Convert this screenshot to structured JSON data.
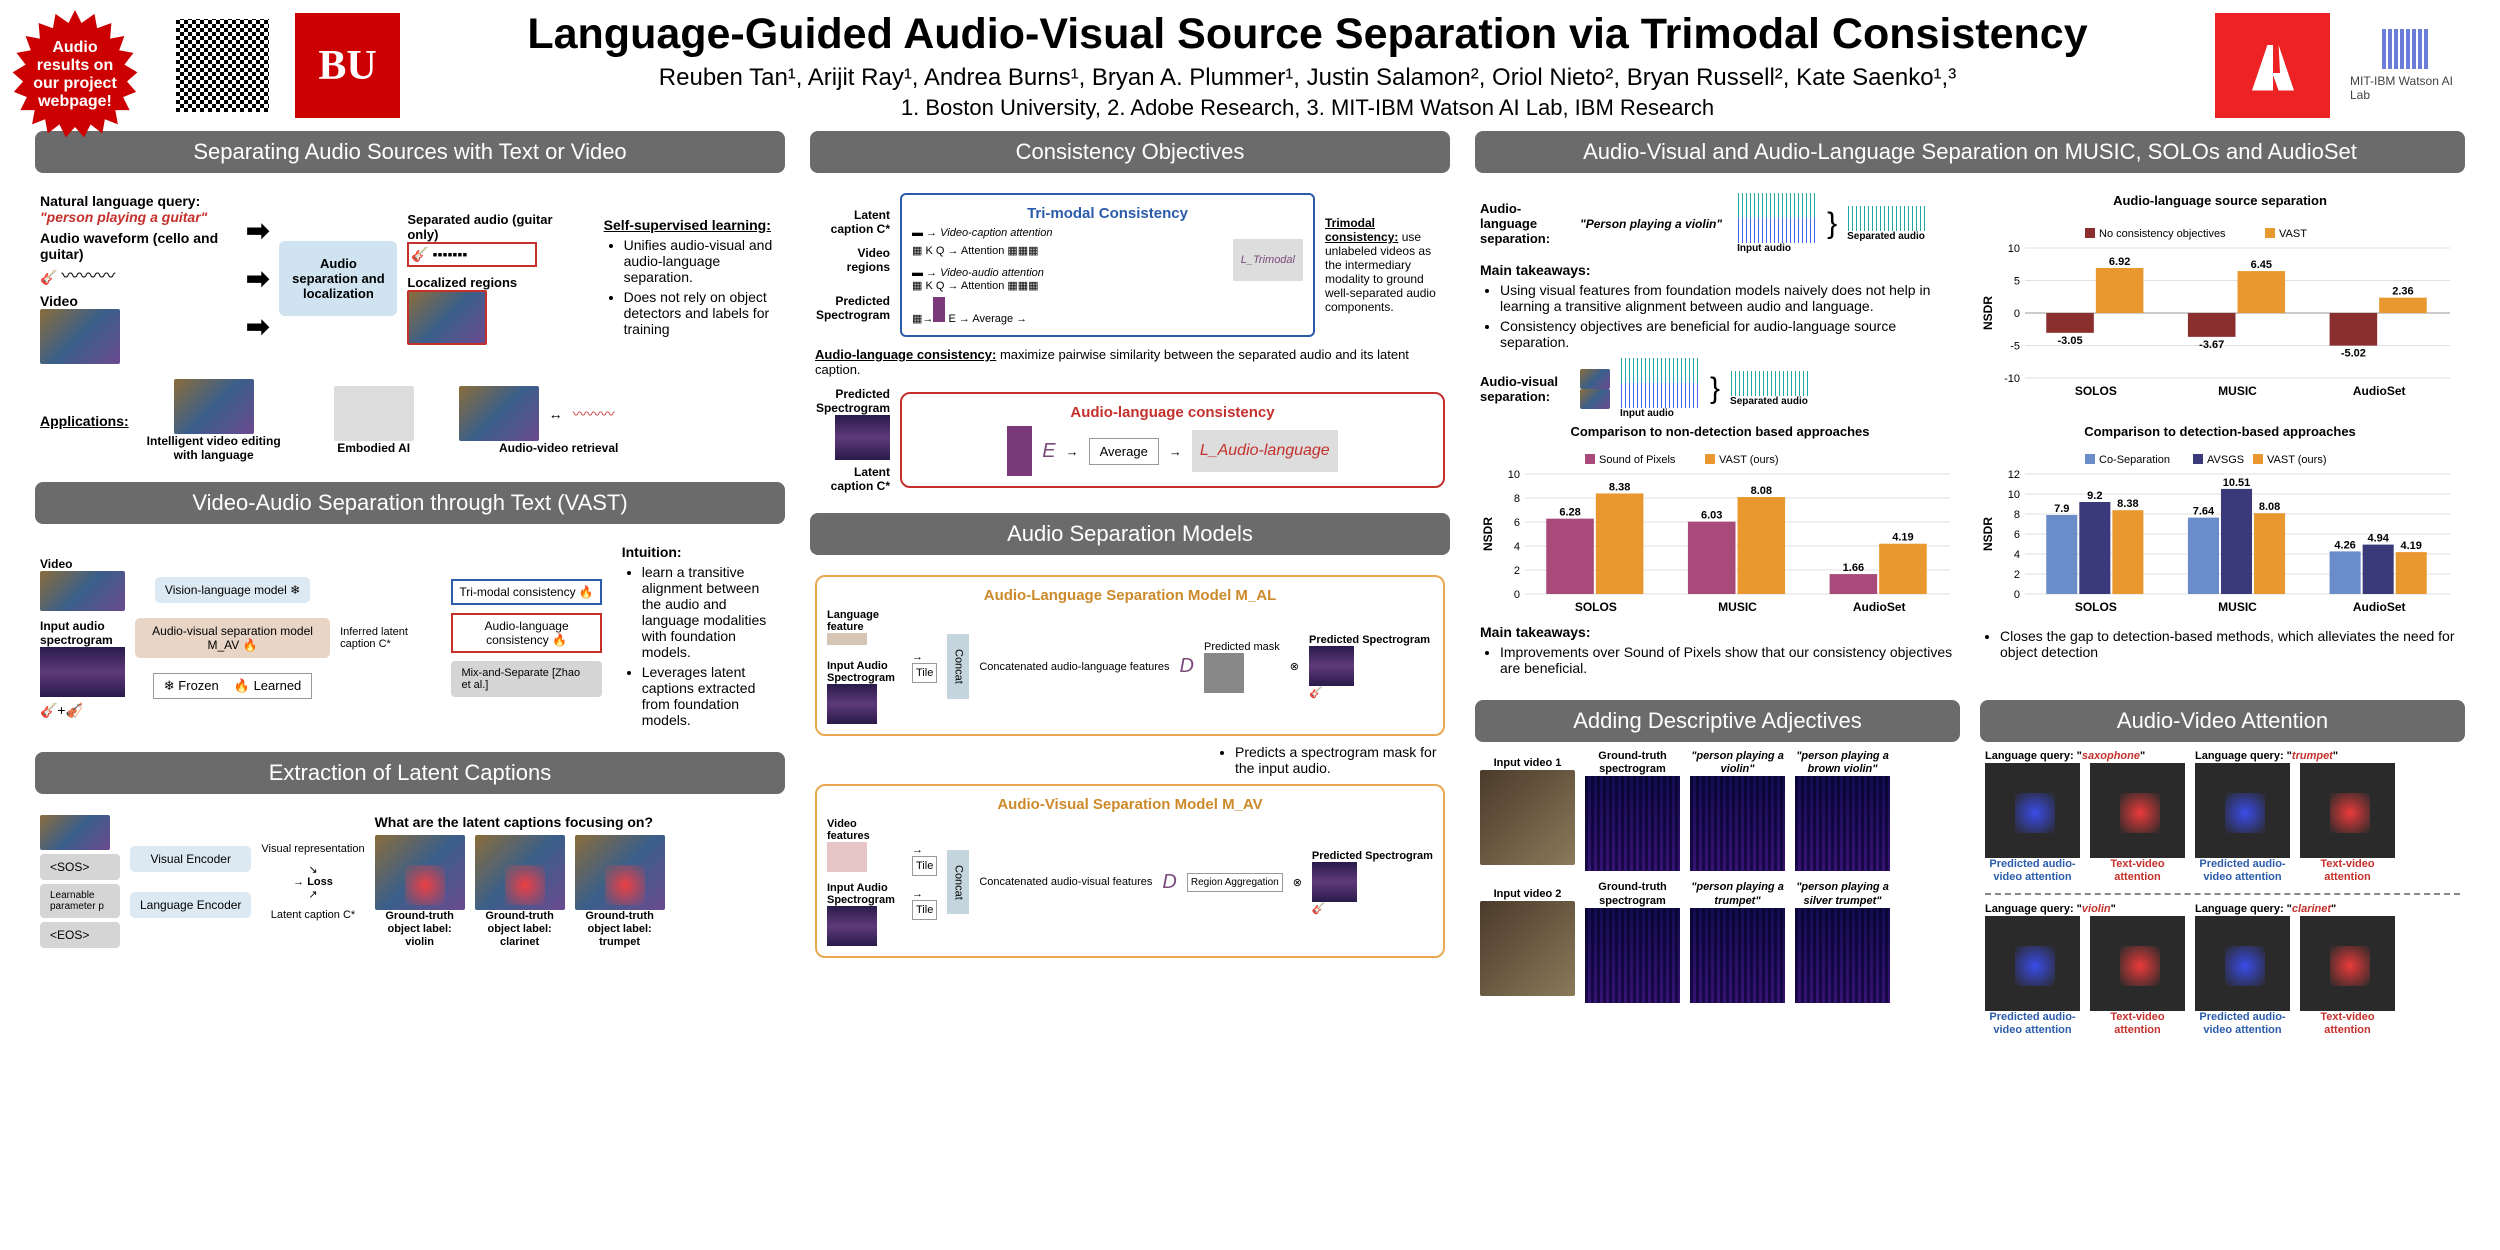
{
  "header": {
    "burst": "Audio results on our project webpage!",
    "bu": "BU",
    "title": "Language-Guided Audio-Visual Source Separation via Trimodal Consistency",
    "authors": "Reuben Tan¹, Arijit Ray¹, Andrea Burns¹, Bryan A. Plummer¹, Justin Salamon², Oriol Nieto², Bryan Russell², Kate Saenko¹,³",
    "affils": "1. Boston University, 2. Adobe Research, 3. MIT-IBM Watson AI Lab, IBM Research",
    "adobe": "A",
    "mit": "MIT-IBM Watson AI Lab"
  },
  "col1": {
    "s1": {
      "title": "Separating Audio Sources with Text or Video",
      "query_label": "Natural language query:",
      "query": "\"person playing a guitar\"",
      "waveform": "Audio waveform (cello and guitar)",
      "video": "Video",
      "box": "Audio separation and localization",
      "sep_audio": "Separated audio (guitar only)",
      "localized": "Localized regions",
      "ssl_title": "Self-supervised learning:",
      "ssl_1": "Unifies audio-visual and audio-language separation.",
      "ssl_2": "Does not rely on object detectors and labels for training",
      "apps_label": "Applications:",
      "app1": "Intelligent video editing with language",
      "app2": "Embodied AI",
      "app3": "Audio-video retrieval"
    },
    "s2": {
      "title": "Video-Audio Separation through Text (VAST)",
      "video": "Video",
      "input_spec": "Input audio spectrogram",
      "vlm": "Vision-language model",
      "avsm": "Audio-visual separation model M_AV",
      "inferred": "Inferred latent caption C*",
      "trimodal_box": "Tri-modal consistency",
      "alc_box": "Audio-language consistency",
      "mix": "Mix-and-Separate [Zhao et al.]",
      "frozen": "❄ Frozen",
      "learned": "🔥 Learned",
      "intuition_label": "Intuition:",
      "int1": "learn a transitive alignment between the audio and language modalities with foundation models.",
      "int2": "Leverages latent captions extracted from foundation models."
    },
    "s3": {
      "title": "Extraction of Latent Captions",
      "visual_enc": "Visual Encoder",
      "lang_enc": "Language Encoder",
      "sos": "<SOS>",
      "param": "Learnable parameter p",
      "eos": "<EOS>",
      "vis_rep": "Visual representation",
      "loss": "Loss",
      "latent": "Latent caption C*",
      "q": "What are the latent captions focusing on?",
      "gt1": "Ground-truth object label: violin",
      "gt2": "Ground-truth object label: clarinet",
      "gt3": "Ground-truth object label: trumpet"
    }
  },
  "col2": {
    "s1": {
      "title": "Consistency Objectives",
      "latent_cap": "Latent caption C*",
      "video_reg": "Video regions",
      "pred_spec": "Predicted Spectrogram",
      "trimodal_title": "Tri-modal Consistency",
      "vc_attn": "Video-caption attention",
      "va_attn": "Video-audio attention",
      "avg": "Average",
      "loss_tri": "L_Trimodal",
      "trimodal_desc_label": "Trimodal consistency:",
      "trimodal_desc": "use unlabeled videos as the intermediary modality to ground well-separated audio components.",
      "alc_desc_label": "Audio-language consistency:",
      "alc_desc": "maximize pairwise similarity between the separated audio and its latent caption.",
      "alc_title": "Audio-language consistency",
      "enc": "E",
      "loss_al": "L_Audio-language"
    },
    "s2": {
      "title": "Audio Separation Models",
      "al_title": "Audio-Language Separation Model M_AL",
      "lang_feat": "Language feature",
      "input_spec": "Input Audio Spectrogram",
      "tile": "Tile",
      "concat": "Concat",
      "concat_al": "Concatenated audio-language features",
      "dec": "D",
      "pred_mask": "Predicted mask",
      "pred_spec": "Predicted Spectrogram",
      "desc": "Predicts a spectrogram mask for the input audio.",
      "av_title": "Audio-Visual Separation Model M_AV",
      "video_feat": "Video features",
      "concat_av": "Concatenated audio-visual features",
      "region_agg": "Region Aggregation"
    }
  },
  "col3": {
    "s1": {
      "title": "Audio-Visual and Audio-Language Separation on MUSIC, SOLOs and AudioSet",
      "al_sep": "Audio-language separation:",
      "av_sep": "Audio-visual separation:",
      "query1": "\"Person playing a violin\"",
      "input_audio": "Input audio",
      "sep_audio": "Separated audio",
      "main_takeaways": "Main takeaways:",
      "t1": "Using visual features from foundation models naively does not help in learning a transitive alignment between audio and language.",
      "t2": "Consistency objectives are beneficial for audio-language source separation.",
      "chart1": {
        "title": "Audio-language source separation",
        "legend": [
          "No consistency objectives",
          "VAST"
        ],
        "colors": [
          "#8b2e2e",
          "#e8982e"
        ],
        "categories": [
          "SOLOS",
          "MUSIC",
          "AudioSet"
        ],
        "series0": [
          -3.05,
          -3.67,
          -5.02
        ],
        "series1": [
          6.92,
          6.45,
          2.36
        ],
        "ylim": [
          -10,
          10
        ],
        "ystep": 5,
        "ylabel": "NSDR"
      },
      "cmp1_title": "Comparison to non-detection based approaches",
      "chart2": {
        "legend": [
          "Sound of Pixels",
          "VAST (ours)"
        ],
        "colors": [
          "#a84a7a",
          "#e8982e"
        ],
        "categories": [
          "SOLOS",
          "MUSIC",
          "AudioSet"
        ],
        "series0": [
          6.28,
          6.03,
          1.66
        ],
        "series1": [
          8.38,
          8.08,
          4.19
        ],
        "ylim": [
          0,
          10
        ],
        "ystep": 2,
        "ylabel": "NSDR"
      },
      "cmp2_title": "Comparison to detection-based approaches",
      "chart3": {
        "legend": [
          "Co-Separation",
          "AVSGS",
          "VAST (ours)"
        ],
        "colors": [
          "#6a8cc8",
          "#3a3a7a",
          "#e8982e"
        ],
        "categories": [
          "SOLOS",
          "MUSIC",
          "AudioSet"
        ],
        "series0": [
          7.9,
          7.64,
          4.26
        ],
        "series1": [
          9.2,
          10.51,
          4.94
        ],
        "series2": [
          8.38,
          8.08,
          4.19
        ],
        "ylim": [
          0,
          12
        ],
        "ystep": 2,
        "ylabel": "NSDR"
      },
      "take2_1": "Improvements over Sound of Pixels show that our consistency objectives are beneficial.",
      "take2_2": "Closes the gap to detection-based methods, which alleviates the need for object detection"
    },
    "s2": {
      "title": "Adding Descriptive Adjectives",
      "iv1": "Input video 1",
      "iv2": "Input video 2",
      "gt_spec": "Ground-truth spectrogram",
      "q1a": "\"person playing a violin\"",
      "q1b": "\"person playing a brown violin\"",
      "q2a": "\"person playing a trumpet\"",
      "q2b": "\"person playing a silver trumpet\""
    },
    "s3": {
      "title": "Audio-Video Attention",
      "lq": "Language query:",
      "sax": "saxophone",
      "trumpet": "trumpet",
      "violin": "violin",
      "clarinet": "clarinet",
      "pav": "Predicted audio-video attention",
      "tva": "Text-video attention"
    }
  }
}
